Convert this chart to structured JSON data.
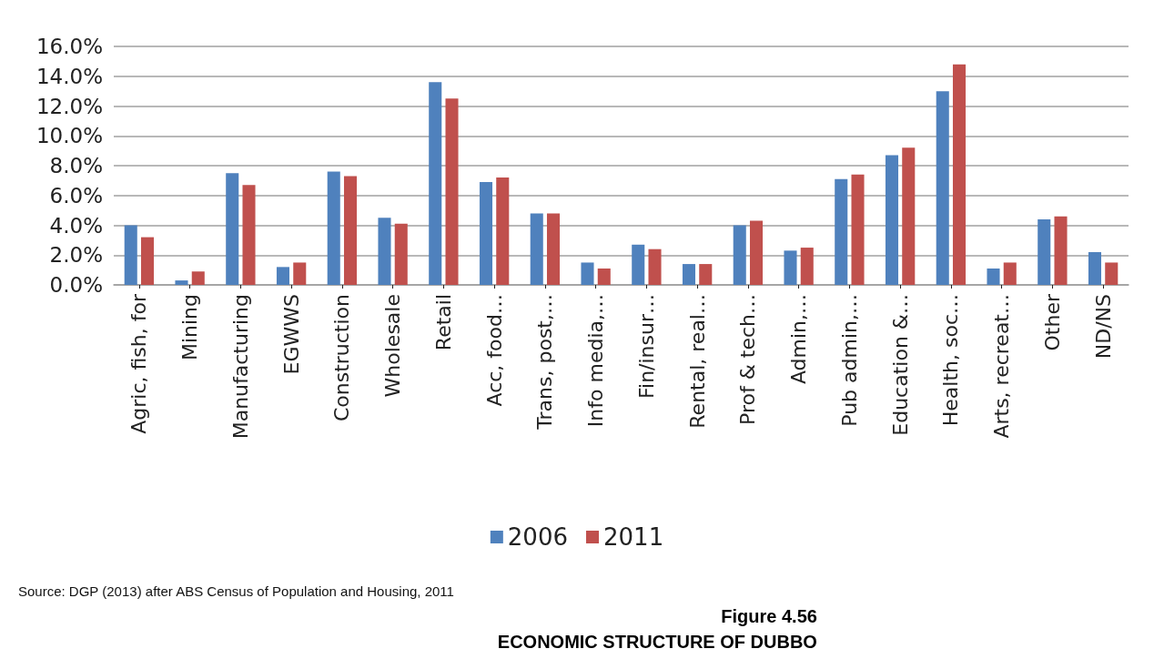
{
  "chart_data": {
    "type": "bar",
    "title": "Figure 4.56",
    "subtitle": "ECONOMIC STRUCTURE OF DUBBO",
    "annotations": [
      "Source: DGP (2013) after ABS Census of Population and Housing, 2011"
    ],
    "categories": [
      "Agric, fish, for",
      "Mining",
      "Manufacturing",
      "EGWWS",
      "Construction",
      "Wholesale",
      "Retail",
      "Acc, food…",
      "Trans, post,…",
      "Info media,…",
      "Fin/insur…",
      "Rental, real…",
      "Prof & tech…",
      "Admin,…",
      "Pub admin,…",
      "Education &…",
      "Health, soc…",
      "Arts, recreat…",
      "Other",
      "ND/NS"
    ],
    "series": [
      {
        "name": "2006",
        "color": "#4f81bd",
        "values": [
          4.0,
          0.3,
          7.5,
          1.2,
          7.6,
          4.5,
          13.6,
          6.9,
          4.8,
          1.5,
          2.7,
          1.4,
          4.0,
          2.3,
          7.1,
          8.7,
          13.0,
          1.1,
          4.4,
          2.2
        ]
      },
      {
        "name": "2011",
        "color": "#c0504d",
        "values": [
          3.2,
          0.9,
          6.7,
          1.5,
          7.3,
          4.1,
          12.5,
          7.2,
          4.8,
          1.1,
          2.4,
          1.4,
          4.3,
          2.5,
          7.4,
          9.2,
          14.8,
          1.5,
          4.6,
          1.5
        ]
      }
    ],
    "ylim": [
      0,
      16
    ],
    "yticks": [
      {
        "value": 0,
        "label": "0.0%"
      },
      {
        "value": 2,
        "label": "2.0%"
      },
      {
        "value": 4,
        "label": "4.0%"
      },
      {
        "value": 6,
        "label": "6.0%"
      },
      {
        "value": 8,
        "label": "8.0%"
      },
      {
        "value": 10,
        "label": "10.0%"
      },
      {
        "value": 12,
        "label": "12.0%"
      },
      {
        "value": 14,
        "label": "14.0%"
      },
      {
        "value": 16,
        "label": "16.0%"
      }
    ],
    "grid": "y",
    "legend": "bottom"
  }
}
